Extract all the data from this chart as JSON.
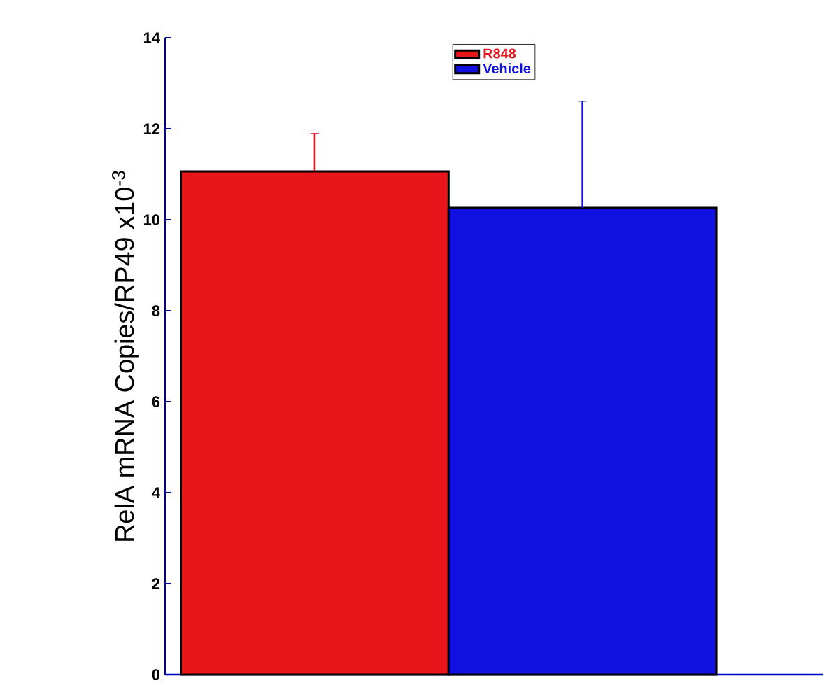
{
  "chart_data": {
    "type": "bar",
    "ylabel": "RelA mRNA Copies/RP49 x10$^{-3}$",
    "categories": [
      null
    ],
    "series": [
      {
        "name": "R848",
        "color": "#e8161b",
        "values": [
          11.06
        ],
        "errors": [
          0.84
        ]
      },
      {
        "name": "Vehicle",
        "color": "#1010e0",
        "values": [
          10.26
        ],
        "errors": [
          2.34
        ]
      }
    ],
    "ylim": [
      0,
      14
    ],
    "yticks": [
      0,
      2,
      4,
      6,
      8,
      10,
      12,
      14
    ],
    "legend": "top",
    "grid": false
  }
}
